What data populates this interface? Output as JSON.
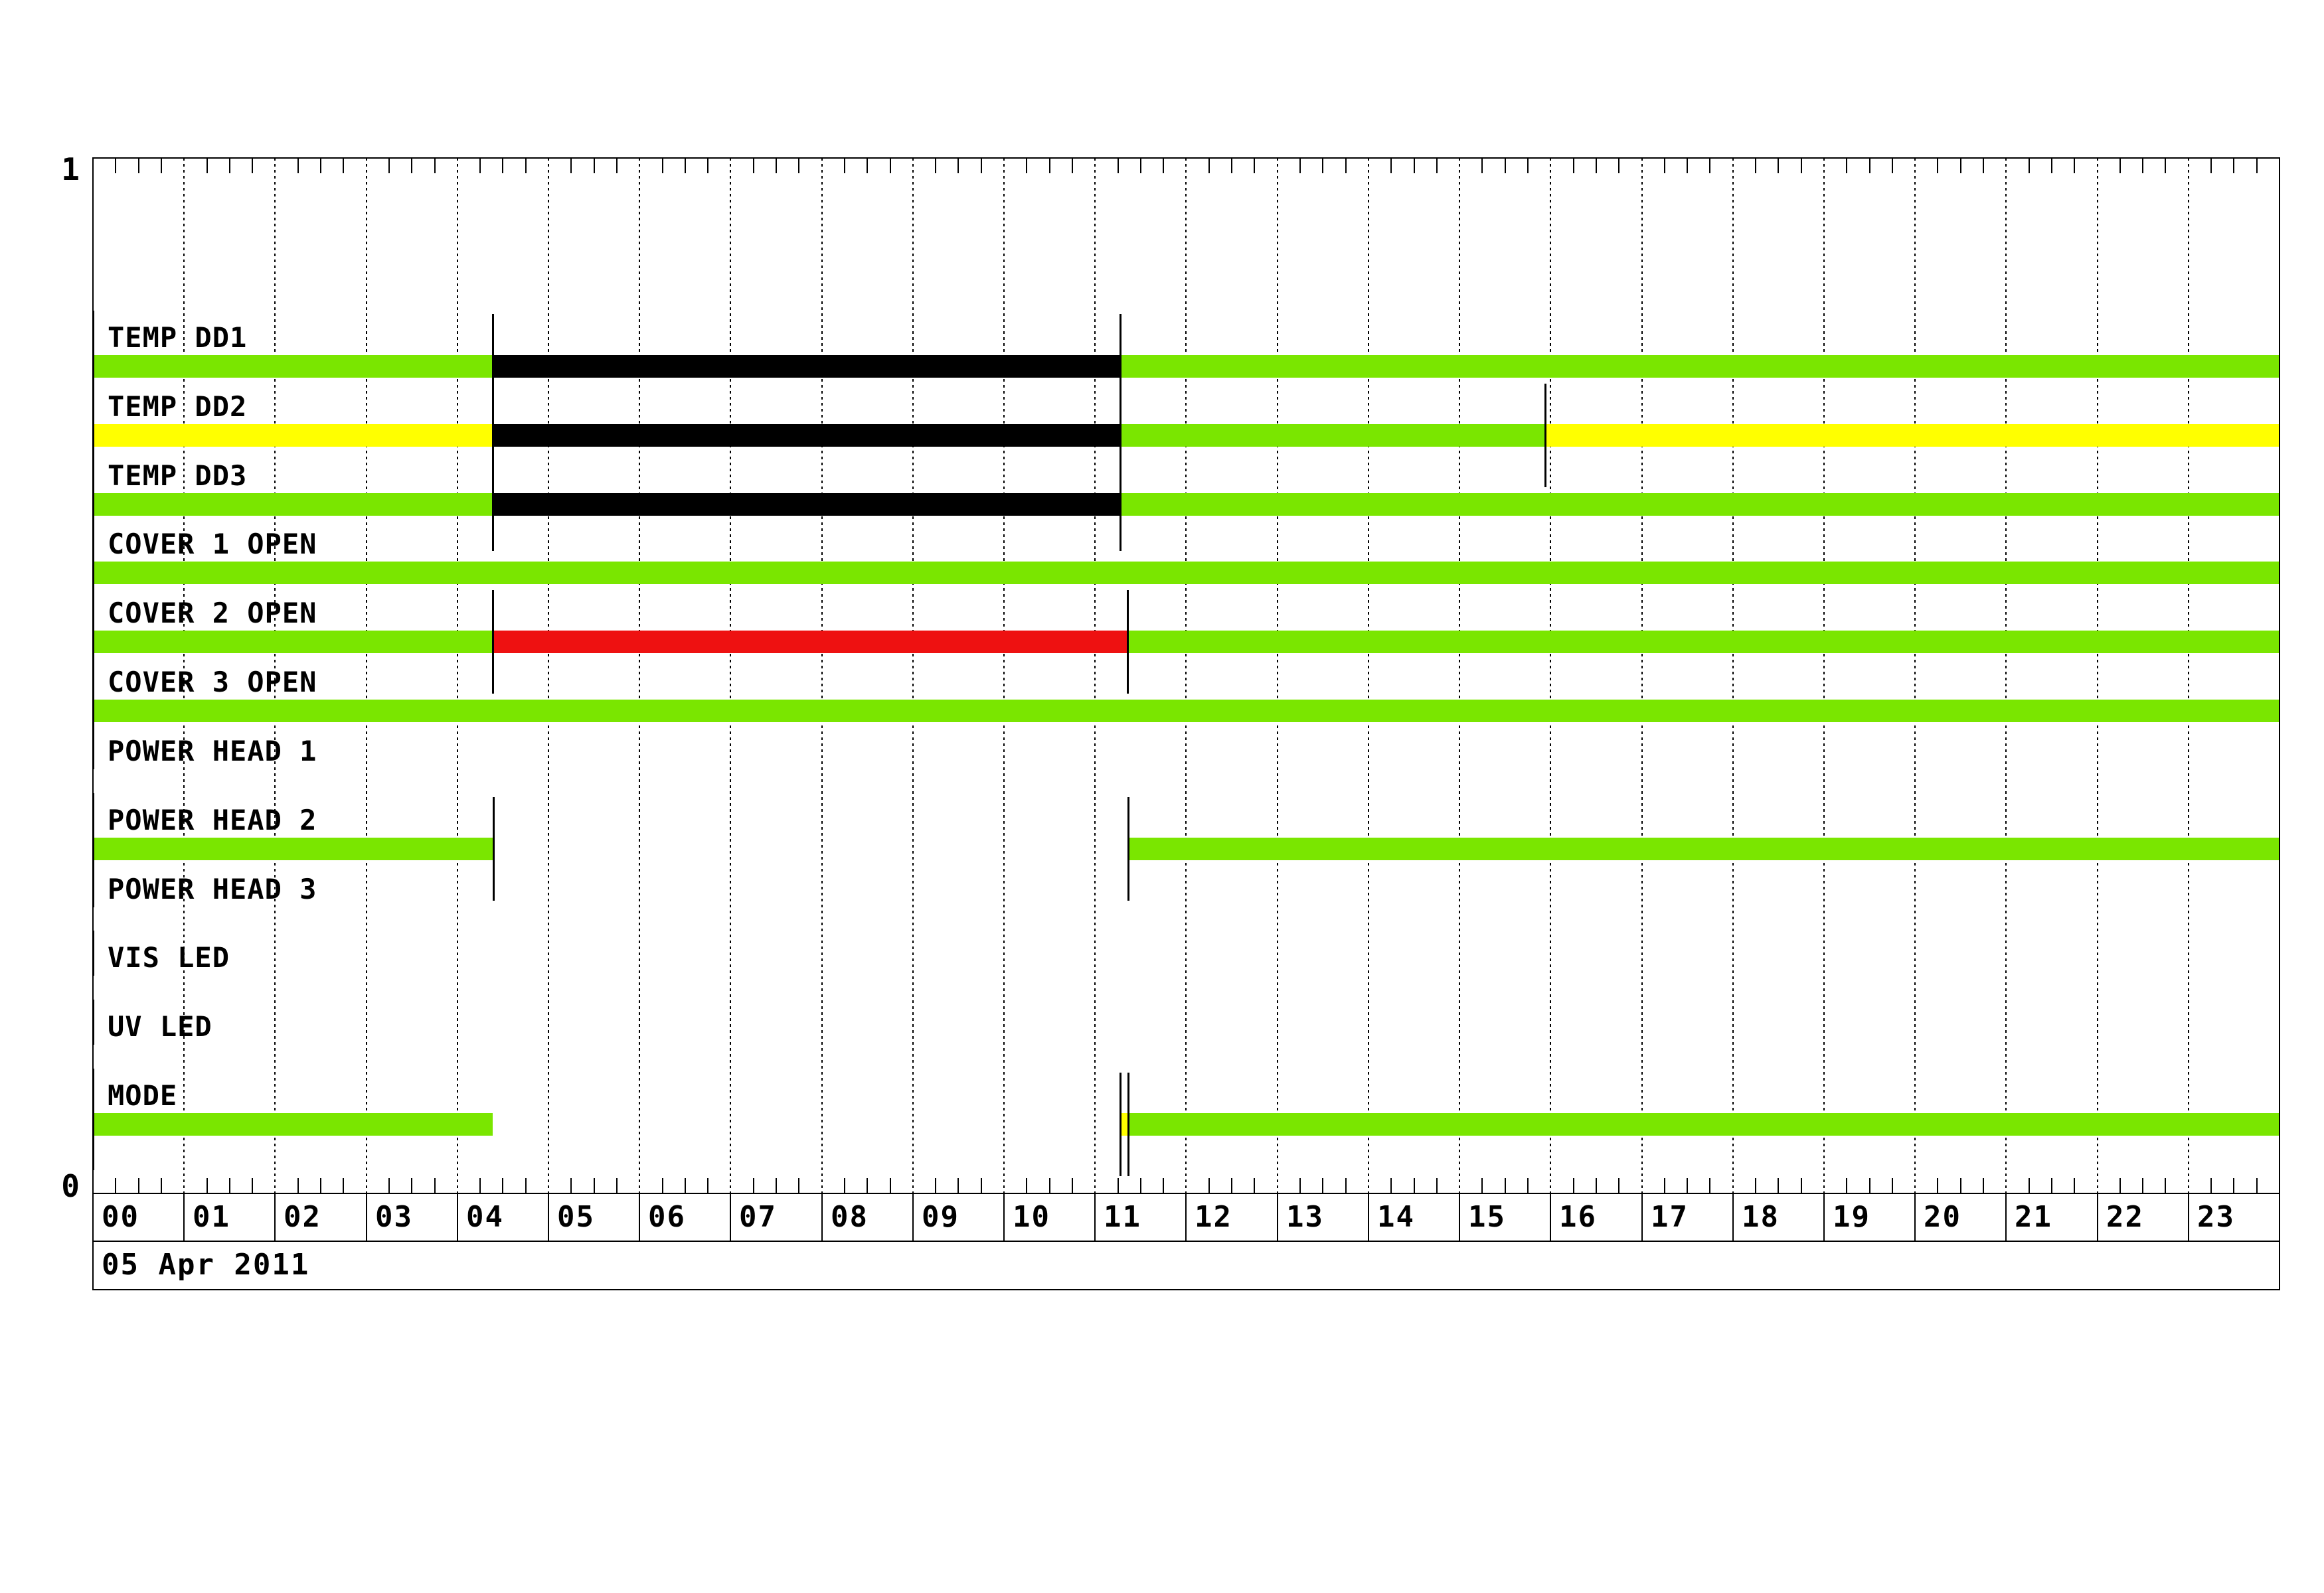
{
  "chart_data": {
    "type": "bar",
    "subtype": "gantt-status-timeline",
    "title": "",
    "date_label": "05 Apr 2011",
    "grid": "dotted-hourly",
    "legend_position": "none",
    "x_axis": {
      "unit": "hour",
      "range": [
        0,
        24
      ],
      "minor_tick_interval_hours": 0.25,
      "tick_labels": [
        "00",
        "01",
        "02",
        "03",
        "04",
        "05",
        "06",
        "07",
        "08",
        "09",
        "10",
        "11",
        "12",
        "13",
        "14",
        "15",
        "16",
        "17",
        "18",
        "19",
        "20",
        "21",
        "22",
        "23"
      ]
    },
    "y_axis": {
      "top_label": "1",
      "bottom_label": "0"
    },
    "colors": {
      "green": "#7AE600",
      "yellow": "#FFFF00",
      "black": "#000000",
      "red": "#EE1111",
      "line": "#000000",
      "background": "#FFFFFF"
    },
    "rows": [
      {
        "label": "TEMP DD1",
        "segments": [
          [
            0,
            4.387,
            "green"
          ],
          [
            4.387,
            11.275,
            "black"
          ],
          [
            11.275,
            24,
            "green"
          ]
        ],
        "markers": [
          0
        ]
      },
      {
        "label": "TEMP DD2",
        "segments": [
          [
            0,
            4.387,
            "yellow"
          ],
          [
            4.387,
            11.275,
            "black"
          ],
          [
            11.275,
            15.94,
            "green"
          ],
          [
            15.94,
            24,
            "yellow"
          ]
        ],
        "markers": [
          0,
          15.94
        ]
      },
      {
        "label": "TEMP DD3",
        "segments": [
          [
            0,
            4.387,
            "green"
          ],
          [
            4.387,
            11.275,
            "black"
          ],
          [
            11.275,
            24,
            "green"
          ]
        ],
        "markers": [
          0
        ]
      },
      {
        "label": "COVER 1 OPEN",
        "segments": [
          [
            0,
            24,
            "green"
          ]
        ],
        "markers": [
          0
        ]
      },
      {
        "label": "COVER 2 OPEN",
        "segments": [
          [
            0,
            4.387,
            "green"
          ],
          [
            4.387,
            11.355,
            "red"
          ],
          [
            11.355,
            24,
            "green"
          ]
        ],
        "markers": [
          0,
          4.387,
          11.355
        ]
      },
      {
        "label": "COVER 3 OPEN",
        "segments": [
          [
            0,
            24,
            "green"
          ]
        ],
        "markers": [
          0
        ]
      },
      {
        "label": "POWER HEAD 1",
        "segments": [],
        "markers": [
          0
        ]
      },
      {
        "label": "POWER HEAD 2",
        "segments": [
          [
            0,
            4.394,
            "green"
          ],
          [
            11.362,
            24,
            "green"
          ]
        ],
        "markers": [
          0,
          4.394,
          11.362
        ]
      },
      {
        "label": "POWER HEAD 3",
        "segments": [],
        "markers": [
          0
        ]
      },
      {
        "label": "VIS LED",
        "segments": [],
        "markers": [
          0
        ]
      },
      {
        "label": "UV LED",
        "segments": [],
        "markers": [
          0
        ]
      },
      {
        "label": "MODE",
        "segments": [
          [
            0,
            4.387,
            "green"
          ],
          [
            11.275,
            11.362,
            "yellow"
          ],
          [
            11.362,
            24,
            "green"
          ]
        ],
        "markers": [
          0,
          11.275,
          11.362
        ]
      }
    ],
    "group_markers": [
      {
        "row_start": 0,
        "row_end": 2,
        "hours": [
          4.387,
          11.275
        ]
      }
    ]
  }
}
